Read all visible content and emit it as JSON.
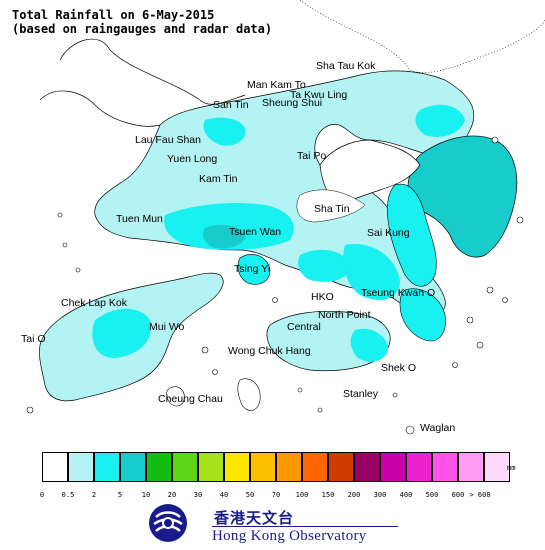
{
  "title": {
    "line1": "Total Rainfall on 6-May-2015",
    "line2": "(based on raingauges and radar data)"
  },
  "places": {
    "sha_tau_kok": "Sha Tau Kok",
    "man_kam_to": "Man Kam To",
    "ta_kwu_ling": "Ta Kwu Ling",
    "san_tin": "San Tin",
    "sheung_shui": "Sheung Shui",
    "lau_fau_shan": "Lau Fau Shan",
    "yuen_long": "Yuen Long",
    "tai_po": "Tai Po",
    "kam_tin": "Kam Tin",
    "sha_tin": "Sha Tin",
    "tuen_mun": "Tuen Mun",
    "tsuen_wan": "Tsuen Wan",
    "sai_kung": "Sai Kung",
    "tsing_yi": "Tsing Yi",
    "chek_lap_kok": "Chek Lap Kok",
    "hko": "HKO",
    "tseung_kwan_o": "Tseung Kwan O",
    "mui_wo": "Mui Wo",
    "north_point": "North Point",
    "central": "Central",
    "tai_o": "Tai O",
    "wong_chuk_hang": "Wong Chuk Hang",
    "shek_o": "Shek O",
    "cheung_chau": "Cheung Chau",
    "stanley": "Stanley",
    "waglan": "Waglan"
  },
  "legend": {
    "unit": "mm",
    "ticks": [
      "0",
      "0.5",
      "2",
      "5",
      "10",
      "20",
      "30",
      "40",
      "50",
      "70",
      "100",
      "150",
      "200",
      "300",
      "400",
      "500",
      "600",
      "> 600"
    ],
    "colors": [
      "#ffffff",
      "#b3f3f3",
      "#19f0f0",
      "#18cccc",
      "#11be11",
      "#5fd516",
      "#a6e21c",
      "#ffe600",
      "#ffbf00",
      "#ff9900",
      "#ff6600",
      "#d03c00",
      "#990066",
      "#cc00aa",
      "#ee22cc",
      "#ff55e8",
      "#ff9df3",
      "#ffd9fa"
    ]
  },
  "logo": {
    "chinese": "香港天文台",
    "english": "Hong Kong Observatory"
  },
  "map_colors": {
    "light_cyan": "#b3f3f3",
    "cyan": "#19f0f0",
    "teal": "#18cccc",
    "land": "#ffffff",
    "sea": "#ffffff"
  }
}
